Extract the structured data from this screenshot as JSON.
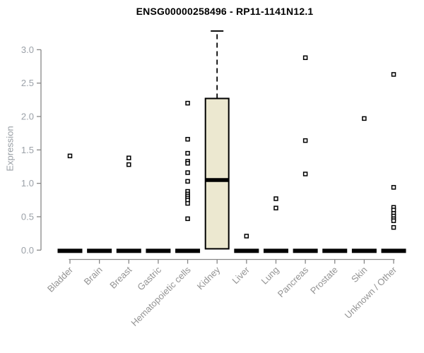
{
  "chart_data": {
    "type": "boxplot",
    "title": "ENSG00000258496 - RP11-1141N12.1",
    "xlabel": "",
    "ylabel": "Expression",
    "ylim": [
      0,
      3.3
    ],
    "yticks": [
      0.0,
      0.5,
      1.0,
      1.5,
      2.0,
      2.5,
      3.0
    ],
    "grid": false,
    "legend": false,
    "categories": [
      "Bladder",
      "Brain",
      "Breast",
      "Gastric",
      "Hematopoietic cells",
      "Kidney",
      "Liver",
      "Lung",
      "Pancreas",
      "Prostate",
      "Skin",
      "Unknown / Other"
    ],
    "boxes": [
      {
        "category": "Bladder",
        "q1": 0,
        "median": 0,
        "q3": 0,
        "whisker_low": 0,
        "whisker_high": 0,
        "outliers": [
          1.41
        ]
      },
      {
        "category": "Brain",
        "q1": 0,
        "median": 0,
        "q3": 0,
        "whisker_low": 0,
        "whisker_high": 0,
        "outliers": []
      },
      {
        "category": "Breast",
        "q1": 0,
        "median": 0,
        "q3": 0,
        "whisker_low": 0,
        "whisker_high": 0,
        "outliers": [
          1.38,
          1.28
        ]
      },
      {
        "category": "Gastric",
        "q1": 0,
        "median": 0,
        "q3": 0,
        "whisker_low": 0,
        "whisker_high": 0,
        "outliers": []
      },
      {
        "category": "Hematopoietic cells",
        "q1": 0,
        "median": 0,
        "q3": 0,
        "whisker_low": 0,
        "whisker_high": 0,
        "outliers": [
          2.2,
          1.66,
          1.45,
          1.33,
          1.3,
          1.16,
          1.03,
          0.88,
          0.84,
          0.81,
          0.78,
          0.75,
          0.7,
          0.47
        ]
      },
      {
        "category": "Kidney",
        "q1": 0.02,
        "median": 1.05,
        "q3": 2.27,
        "whisker_low": 0,
        "whisker_high": 3.28,
        "outliers": []
      },
      {
        "category": "Liver",
        "q1": 0,
        "median": 0,
        "q3": 0,
        "whisker_low": 0,
        "whisker_high": 0,
        "outliers": [
          0.21
        ]
      },
      {
        "category": "Lung",
        "q1": 0,
        "median": 0,
        "q3": 0,
        "whisker_low": 0,
        "whisker_high": 0,
        "outliers": [
          0.77,
          0.63
        ]
      },
      {
        "category": "Pancreas",
        "q1": 0,
        "median": 0,
        "q3": 0,
        "whisker_low": 0,
        "whisker_high": 0,
        "outliers": [
          2.88,
          1.64,
          1.14
        ]
      },
      {
        "category": "Prostate",
        "q1": 0,
        "median": 0,
        "q3": 0,
        "whisker_low": 0,
        "whisker_high": 0,
        "outliers": []
      },
      {
        "category": "Skin",
        "q1": 0,
        "median": 0,
        "q3": 0,
        "whisker_low": 0,
        "whisker_high": 0,
        "outliers": [
          1.97
        ]
      },
      {
        "category": "Unknown / Other",
        "q1": 0,
        "median": 0,
        "q3": 0,
        "whisker_low": 0,
        "whisker_high": 0,
        "outliers": [
          2.63,
          0.94,
          0.64,
          0.6,
          0.55,
          0.51,
          0.47,
          0.44,
          0.34
        ]
      }
    ],
    "colors": {
      "box_fill": "#ece8d0",
      "box_border": "#000000",
      "median": "#000000",
      "whisker": "#000000",
      "zero_bar": "#000000",
      "point_stroke": "#000000",
      "point_fill": "#ffffff",
      "axis": "#878787",
      "tick_label": "#9ba1a8",
      "category_label": "#939393",
      "title": "#000000",
      "background": "#ffffff"
    }
  }
}
